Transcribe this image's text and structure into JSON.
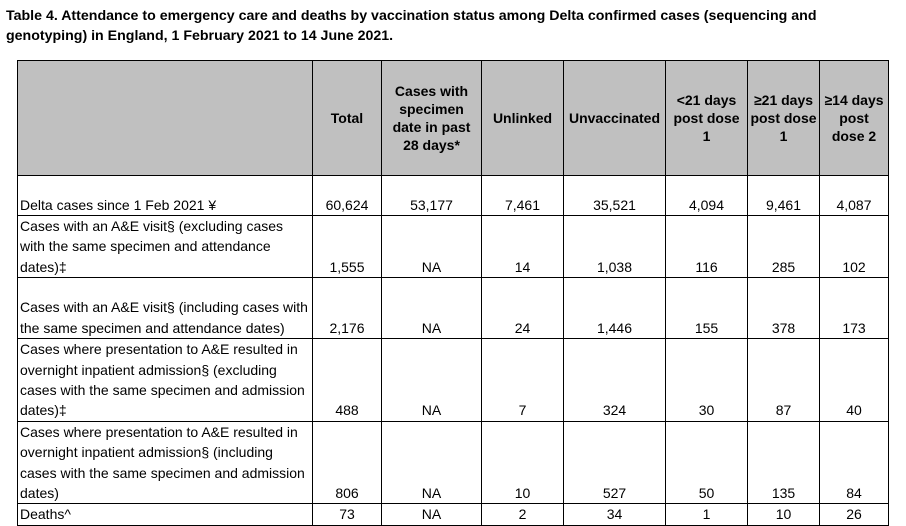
{
  "title": "Table 4. Attendance to emergency care and deaths by vaccination status among Delta confirmed cases (sequencing and genotyping) in England, 1 February 2021 to 14 June 2021.",
  "columns": [
    "",
    "Total",
    "Cases with specimen date in past 28 days*",
    "Unlinked",
    "Unvaccinated",
    "<21 days post dose 1",
    "≥21 days post dose 1",
    "≥14 days post dose 2"
  ],
  "rows": [
    {
      "label": "Delta cases since 1 Feb 2021 ¥",
      "values": [
        "60,624",
        "53,177",
        "7,461",
        "35,521",
        "4,094",
        "9,461",
        "4,087"
      ]
    },
    {
      "label": "Cases with an A&E visit§ (excluding cases with the same specimen and attendance dates)‡",
      "values": [
        "1,555",
        "NA",
        "14",
        "1,038",
        "116",
        "285",
        "102"
      ]
    },
    {
      "label": "Cases with an A&E visit§ (including cases with the same specimen and attendance dates)",
      "values": [
        "2,176",
        "NA",
        "24",
        "1,446",
        "155",
        "378",
        "173"
      ]
    },
    {
      "label": "Cases where presentation to A&E resulted in overnight inpatient admission§ (excluding cases with the same specimen and admission dates)‡",
      "values": [
        "488",
        "NA",
        "7",
        "324",
        "30",
        "87",
        "40"
      ]
    },
    {
      "label": "Cases where presentation to A&E resulted in overnight inpatient admission§ (including cases with the same specimen and admission dates)",
      "values": [
        "806",
        "NA",
        "10",
        "527",
        "50",
        "135",
        "84"
      ]
    },
    {
      "label": "Deaths^",
      "values": [
        "73",
        "NA",
        "2",
        "34",
        "1",
        "10",
        "26"
      ]
    }
  ]
}
